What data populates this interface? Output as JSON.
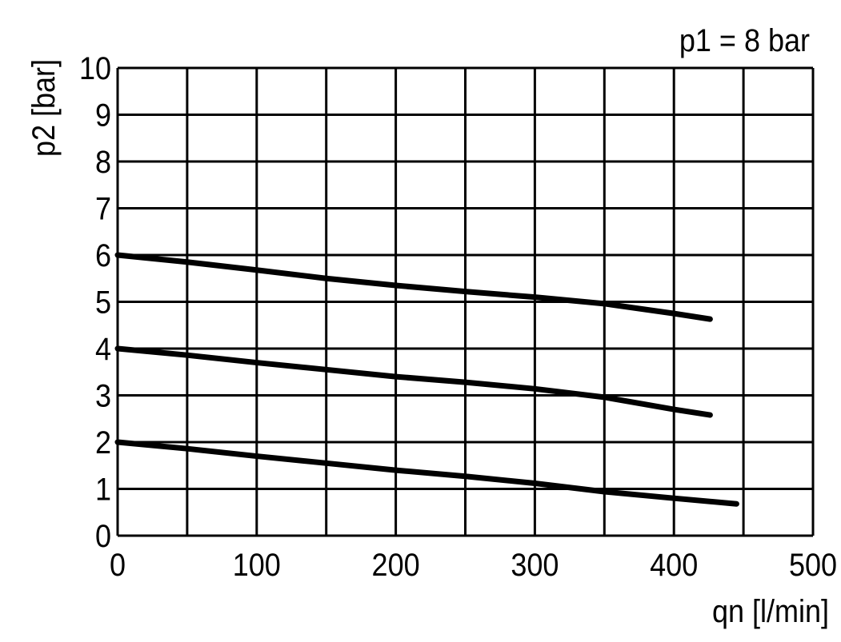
{
  "chart_data": {
    "type": "line",
    "title": "",
    "annotation": "p1 = 8 bar",
    "xlabel": "qn [l/min]",
    "ylabel": "p2 [bar]",
    "xlim": [
      0,
      500
    ],
    "ylim": [
      0,
      10
    ],
    "x_ticks": [
      "0",
      "100",
      "200",
      "300",
      "400",
      "500"
    ],
    "x_tick_values": [
      0,
      100,
      200,
      300,
      400,
      500
    ],
    "y_ticks": [
      "0",
      "1",
      "2",
      "3",
      "4",
      "5",
      "6",
      "7",
      "8",
      "9",
      "10"
    ],
    "y_tick_values": [
      0,
      1,
      2,
      3,
      4,
      5,
      6,
      7,
      8,
      9,
      10
    ],
    "x_grid_step": 50,
    "y_grid_step": 1,
    "grid": true,
    "line_color": "#000000",
    "series": [
      {
        "x": [
          0,
          50,
          100,
          150,
          200,
          250,
          300,
          350,
          400,
          426
        ],
        "y": [
          6.0,
          5.85,
          5.68,
          5.5,
          5.35,
          5.22,
          5.1,
          4.96,
          4.75,
          4.63
        ]
      },
      {
        "x": [
          0,
          50,
          100,
          150,
          200,
          250,
          300,
          350,
          400,
          426
        ],
        "y": [
          4.0,
          3.86,
          3.7,
          3.55,
          3.4,
          3.28,
          3.14,
          2.96,
          2.7,
          2.58
        ]
      },
      {
        "x": [
          0,
          50,
          100,
          150,
          200,
          250,
          300,
          350,
          400,
          445
        ],
        "y": [
          2.0,
          1.86,
          1.7,
          1.55,
          1.4,
          1.27,
          1.12,
          0.94,
          0.8,
          0.68
        ]
      }
    ]
  }
}
